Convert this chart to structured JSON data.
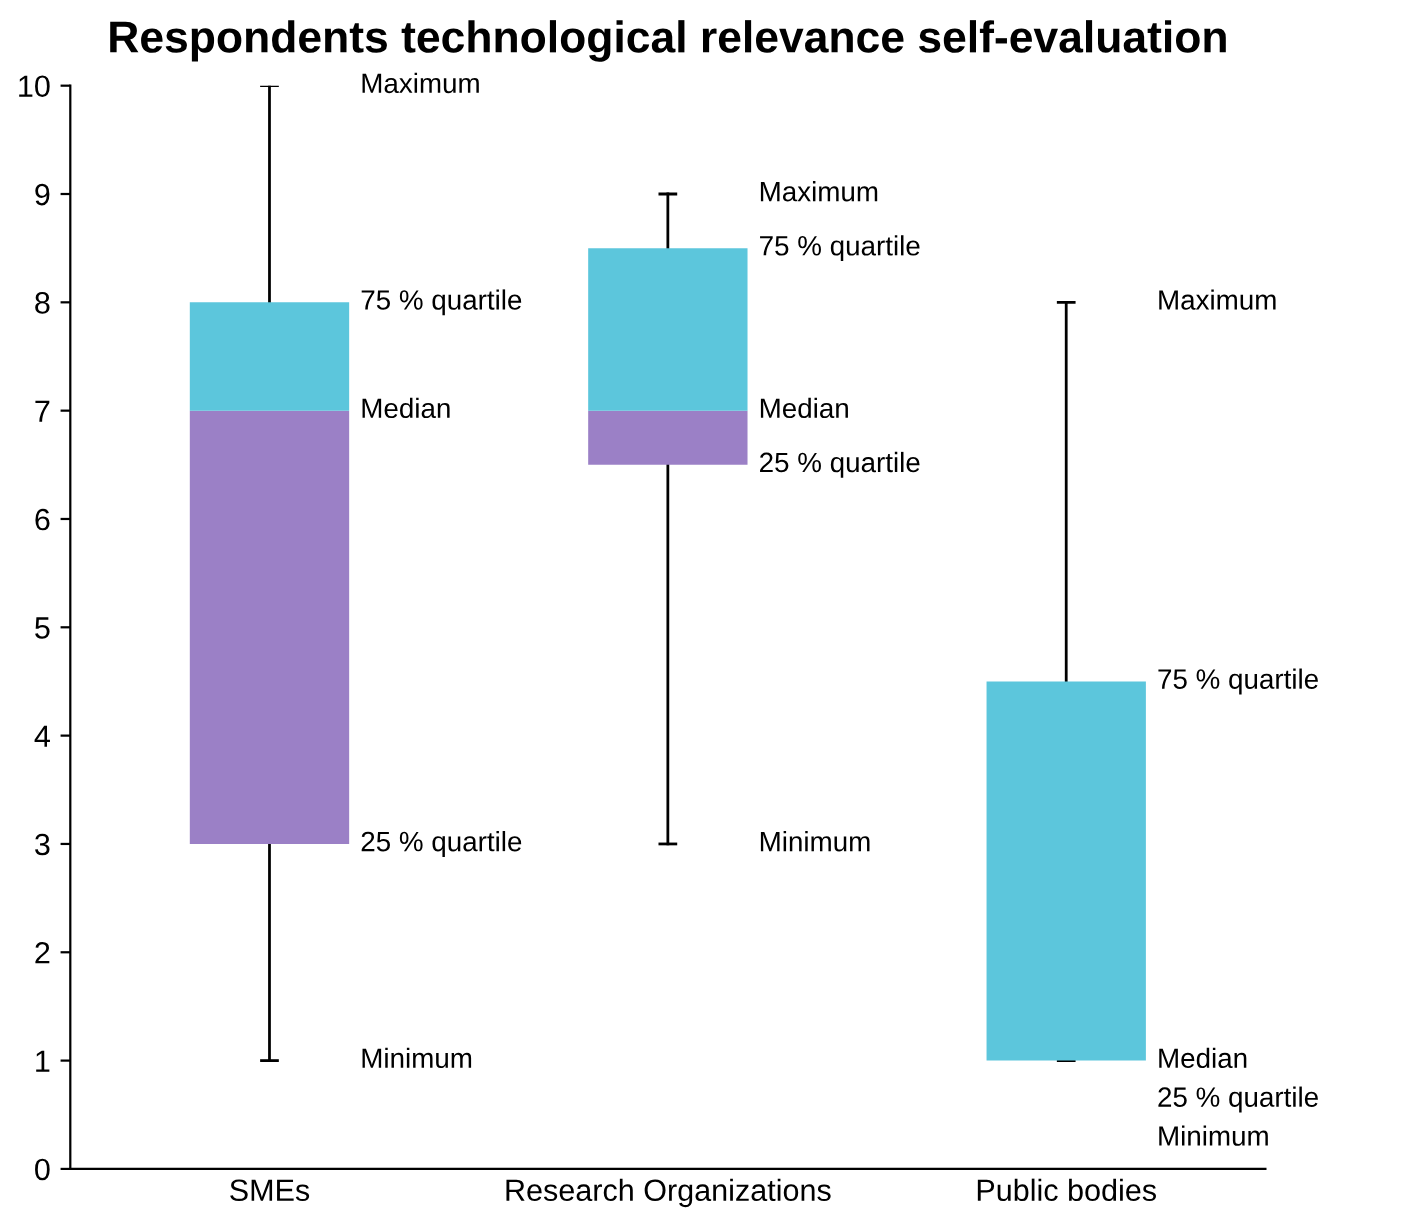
{
  "chart_data": {
    "type": "box",
    "title": "Respondents technological relevance self-evaluation",
    "categories": [
      "SMEs",
      "Research Organizations",
      "Public bodies"
    ],
    "boxes": [
      {
        "low": 1,
        "q1": 3,
        "median": 7,
        "q3": 8,
        "high": 10
      },
      {
        "low": 3,
        "q1": 6.5,
        "median": 7,
        "q3": 8.5,
        "high": 9
      },
      {
        "low": 1,
        "q1": 1,
        "median": 1,
        "q3": 4.5,
        "high": 8
      }
    ],
    "colors": [
      [
        "#9b80c6",
        "#5cc6dc"
      ],
      [
        "#9b80c6",
        "#5cc6dc"
      ],
      [
        "#9b80c6",
        "#5cc6dc"
      ]
    ],
    "ylim": [
      0,
      10
    ],
    "yticks": [
      0,
      1,
      2,
      3,
      4,
      5,
      6,
      7,
      8,
      9,
      10
    ],
    "grid": false,
    "annotations": [
      "Maximum",
      "75 % quartile",
      "Median",
      "25 % quartile",
      "Minimum",
      "Maximum",
      "75 % quartile",
      "Median",
      "25 % quartile",
      "Minimum",
      "Maximum",
      "75 % quartile",
      "Median",
      "25 % quartile",
      "Minimum"
    ]
  }
}
